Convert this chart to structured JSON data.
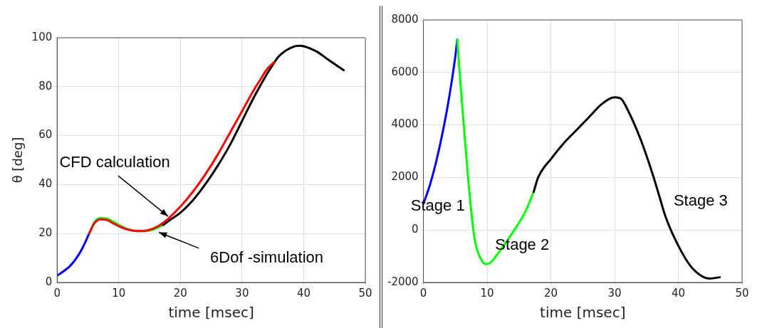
{
  "chart_data": [
    {
      "type": "line",
      "xlabel": "time [msec]",
      "ylabel": "θ [deg]",
      "xlim": [
        0,
        50
      ],
      "xticks": [
        0,
        10,
        20,
        30,
        40,
        50
      ],
      "ylim": [
        0,
        100
      ],
      "yticks": [
        0,
        20,
        40,
        60,
        80,
        100
      ],
      "grid": true,
      "legend": false,
      "marker": "none",
      "line_style": "solid",
      "series": [
        {
          "color": "#0000ff",
          "x": [
            0,
            1,
            2,
            3,
            4,
            5.2
          ],
          "values": [
            2.8,
            4.5,
            6.5,
            9.5,
            13.5,
            20
          ]
        },
        {
          "color": "#00ff00",
          "x": [
            5.2,
            6,
            7,
            8,
            9,
            10,
            11,
            12,
            13,
            14,
            15,
            16,
            17.2
          ],
          "values": [
            20,
            24.5,
            26.3,
            26.2,
            25,
            23.5,
            22.3,
            21.5,
            21,
            21,
            21.2,
            22,
            23.5
          ]
        },
        {
          "color": "#000000",
          "x": [
            17.2,
            18,
            20,
            22,
            24,
            26,
            28,
            30,
            32,
            34,
            35,
            36,
            38,
            39.3,
            40,
            42,
            44,
            46.5
          ],
          "values": [
            23.5,
            25,
            28.5,
            33.5,
            40,
            47.5,
            56,
            66,
            76,
            85,
            89,
            92.5,
            96,
            96.7,
            96.5,
            94.5,
            91,
            86.7
          ]
        },
        {
          "color": "#ff0000",
          "x": [
            5.2,
            6,
            7,
            8,
            9,
            10,
            11,
            12,
            13,
            14,
            15,
            16,
            17,
            18,
            20,
            22,
            24,
            26,
            28,
            30,
            32,
            33,
            34,
            35.2
          ],
          "values": [
            20,
            24,
            25.8,
            25.6,
            24.3,
            23,
            22,
            21.3,
            21,
            21,
            21.5,
            22.5,
            24,
            26,
            31,
            37,
            44,
            52,
            61,
            70,
            79,
            83,
            87,
            90
          ]
        }
      ],
      "annotations": [
        {
          "text": "CFD calculation",
          "x": 18,
          "y": 27
        },
        "6Dof -simulation"
      ]
    },
    {
      "type": "line",
      "xlabel": "time [msec]",
      "xlim": [
        0,
        50
      ],
      "xticks": [
        0,
        10,
        20,
        30,
        40,
        50
      ],
      "ylim": [
        -2000,
        8000
      ],
      "yticks": [
        -2000,
        0,
        2000,
        4000,
        6000,
        8000
      ],
      "grid": true,
      "legend": false,
      "marker": "none",
      "line_style": "solid",
      "series": [
        {
          "color": "#0000ff",
          "x": [
            0,
            1,
            2,
            3,
            4,
            5,
            5.3
          ],
          "values": [
            1000,
            1700,
            2600,
            3700,
            5000,
            6600,
            7250
          ]
        },
        {
          "color": "#00ff00",
          "x": [
            5.3,
            6,
            7,
            8,
            9,
            9.8,
            10.5,
            12,
            14,
            16,
            17.3
          ],
          "values": [
            7250,
            5000,
            2000,
            -300,
            -1100,
            -1300,
            -1250,
            -800,
            -100,
            700,
            1450
          ]
        },
        {
          "color": "#000000",
          "x": [
            17.3,
            18,
            20,
            22,
            24,
            26,
            28,
            30,
            31,
            32,
            34,
            36,
            37,
            38,
            40,
            42,
            44,
            45,
            46.5
          ],
          "values": [
            1450,
            2000,
            2700,
            3300,
            3800,
            4300,
            4800,
            5050,
            5000,
            4600,
            3500,
            2100,
            1300,
            500,
            -600,
            -1400,
            -1800,
            -1850,
            -1800
          ]
        }
      ],
      "annotations": [
        "Stage 1",
        "Stage 2",
        "Stage 3"
      ]
    }
  ]
}
